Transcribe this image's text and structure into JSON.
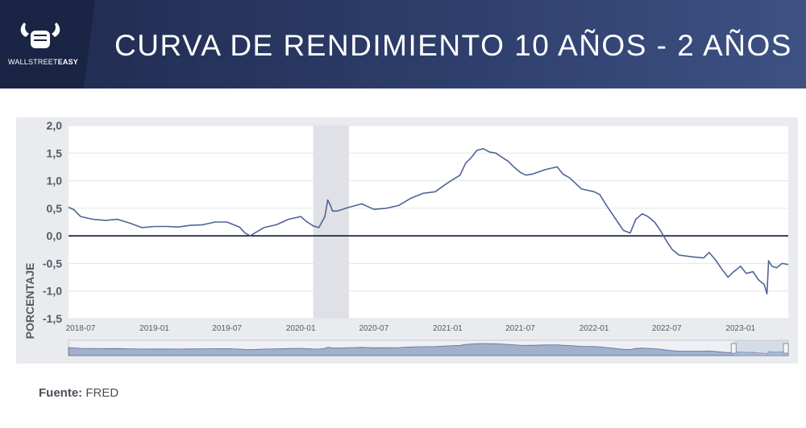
{
  "brand": {
    "name_part1": "WALLSTREET",
    "name_part2": "EASY",
    "logo_icon": "bull-fist-icon"
  },
  "header": {
    "title": "CURVA DE RENDIMIENTO 10 AÑOS - 2 AÑOS"
  },
  "source": {
    "label": "Fuente:",
    "value": "FRED"
  },
  "colors": {
    "header_dark": "#1f2a4d",
    "line": "#4e6594",
    "zero_line": "#0f1a33",
    "band": "#dfe1e6"
  },
  "chart_data": {
    "type": "line",
    "title": "",
    "xlabel": "",
    "ylabel": "PORCENTAJE",
    "ylim": [
      -1.5,
      2.0
    ],
    "yticks": [
      "2,0",
      "1,5",
      "1,0",
      "0,5",
      "0,0",
      "-0,5",
      "-1,0",
      "-1,5"
    ],
    "xticks": [
      "2018-07",
      "2019-01",
      "2019-07",
      "2020-01",
      "2020-07",
      "2021-01",
      "2021-07",
      "2022-01",
      "2022-07",
      "2023-01"
    ],
    "x_range": [
      "2018-06-01",
      "2023-04-30"
    ],
    "grid": true,
    "reference_line": 0.0,
    "shaded_period": [
      "2020-02-01",
      "2020-04-30"
    ],
    "navigator": true,
    "series": [
      {
        "x": [
          "2018-06-01",
          "2018-06-15",
          "2018-07-01",
          "2018-08-01",
          "2018-09-01",
          "2018-10-01",
          "2018-11-01",
          "2018-12-01",
          "2019-01-01",
          "2019-02-01",
          "2019-03-01",
          "2019-04-01",
          "2019-05-01",
          "2019-06-01",
          "2019-07-01",
          "2019-08-01",
          "2019-08-15",
          "2019-08-28",
          "2019-09-15",
          "2019-10-01",
          "2019-11-01",
          "2019-12-01",
          "2020-01-01",
          "2020-01-15",
          "2020-02-01",
          "2020-02-15",
          "2020-03-01",
          "2020-03-08",
          "2020-03-15",
          "2020-03-20",
          "2020-04-01",
          "2020-05-01",
          "2020-06-01",
          "2020-07-01",
          "2020-08-01",
          "2020-09-01",
          "2020-10-01",
          "2020-11-01",
          "2020-12-01",
          "2021-01-01",
          "2021-02-01",
          "2021-02-15",
          "2021-03-01",
          "2021-03-15",
          "2021-03-31",
          "2021-04-15",
          "2021-05-01",
          "2021-06-01",
          "2021-06-15",
          "2021-07-01",
          "2021-07-15",
          "2021-08-01",
          "2021-09-01",
          "2021-10-01",
          "2021-10-15",
          "2021-11-01",
          "2021-12-01",
          "2022-01-01",
          "2022-01-15",
          "2022-02-01",
          "2022-02-15",
          "2022-03-01",
          "2022-03-15",
          "2022-04-01",
          "2022-04-15",
          "2022-05-01",
          "2022-05-15",
          "2022-06-01",
          "2022-06-15",
          "2022-07-01",
          "2022-07-15",
          "2022-08-01",
          "2022-09-01",
          "2022-10-01",
          "2022-10-15",
          "2022-11-01",
          "2022-11-15",
          "2022-12-01",
          "2022-12-15",
          "2023-01-01",
          "2023-01-15",
          "2023-02-01",
          "2023-02-15",
          "2023-03-01",
          "2023-03-08",
          "2023-03-12",
          "2023-03-20",
          "2023-04-01",
          "2023-04-15",
          "2023-04-30"
        ],
        "values": [
          0.52,
          0.47,
          0.35,
          0.3,
          0.28,
          0.3,
          0.23,
          0.15,
          0.17,
          0.17,
          0.16,
          0.19,
          0.2,
          0.25,
          0.25,
          0.16,
          0.05,
          0.0,
          0.08,
          0.15,
          0.2,
          0.3,
          0.35,
          0.26,
          0.18,
          0.15,
          0.35,
          0.65,
          0.55,
          0.45,
          0.45,
          0.52,
          0.58,
          0.48,
          0.5,
          0.55,
          0.68,
          0.77,
          0.8,
          0.96,
          1.1,
          1.32,
          1.42,
          1.55,
          1.58,
          1.52,
          1.5,
          1.35,
          1.25,
          1.15,
          1.1,
          1.12,
          1.2,
          1.25,
          1.12,
          1.05,
          0.85,
          0.8,
          0.75,
          0.55,
          0.4,
          0.25,
          0.1,
          0.05,
          0.3,
          0.4,
          0.35,
          0.25,
          0.1,
          -0.1,
          -0.25,
          -0.35,
          -0.38,
          -0.4,
          -0.3,
          -0.45,
          -0.6,
          -0.75,
          -0.65,
          -0.55,
          -0.68,
          -0.65,
          -0.8,
          -0.88,
          -1.05,
          -0.45,
          -0.55,
          -0.58,
          -0.5,
          -0.52
        ]
      }
    ]
  }
}
